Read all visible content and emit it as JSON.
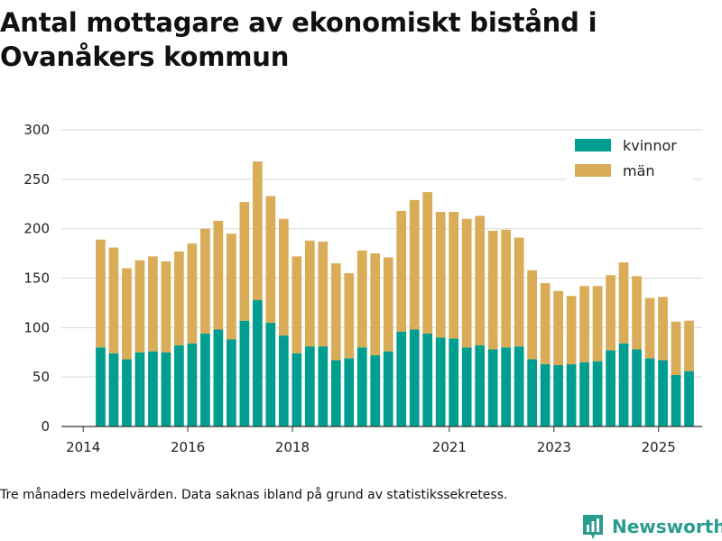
{
  "title": "Antal mottagare av ekonomiskt bistånd i Ovanåkers kommun",
  "note": "Tre månaders medelvärden. Data saknas ibland på grund av statistikssekretess.",
  "brand": {
    "name": "Newsworthy"
  },
  "colors": {
    "kvinnor": "#009e8e",
    "man": "#d9ac57",
    "axis": "#333333",
    "grid": "#d9d9d9",
    "brand": "#2a9d8f"
  },
  "chart_data": {
    "type": "bar",
    "stacked": true,
    "title": "Antal mottagare av ekonomiskt bistånd i Ovanåkers kommun",
    "xlabel": "",
    "ylabel": "",
    "ylim": [
      0,
      300
    ],
    "yticks": [
      0,
      50,
      100,
      150,
      200,
      250,
      300
    ],
    "x_domain": [
      2013.583,
      2025.833
    ],
    "xticks": [
      {
        "value": 2014,
        "label": "2014"
      },
      {
        "value": 2016,
        "label": "2016"
      },
      {
        "value": 2018,
        "label": "2018"
      },
      {
        "value": 2021,
        "label": "2021"
      },
      {
        "value": 2023,
        "label": "2023"
      },
      {
        "value": 2025,
        "label": "2025"
      }
    ],
    "legend": {
      "position": "top-right"
    },
    "x": [
      2014.333,
      2014.583,
      2014.833,
      2015.083,
      2015.333,
      2015.583,
      2015.833,
      2016.083,
      2016.333,
      2016.583,
      2016.833,
      2017.083,
      2017.333,
      2017.583,
      2017.833,
      2018.083,
      2018.333,
      2018.583,
      2018.833,
      2019.083,
      2019.333,
      2019.583,
      2019.833,
      2020.083,
      2020.333,
      2020.583,
      2020.833,
      2021.083,
      2021.333,
      2021.583,
      2021.833,
      2022.083,
      2022.333,
      2022.583,
      2022.833,
      2023.083,
      2023.333,
      2023.583,
      2023.833,
      2024.083,
      2024.333,
      2024.583,
      2024.833,
      2025.083,
      2025.333,
      2025.583
    ],
    "series": [
      {
        "name": "kvinnor",
        "values": [
          80,
          74,
          68,
          75,
          76,
          75,
          82,
          84,
          94,
          98,
          88,
          107,
          128,
          105,
          92,
          74,
          81,
          81,
          67,
          69,
          80,
          72,
          76,
          96,
          98,
          94,
          90,
          89,
          80,
          82,
          78,
          80,
          81,
          68,
          63,
          62,
          63,
          65,
          66,
          77,
          84,
          78,
          69,
          67,
          52,
          56
        ]
      },
      {
        "name": "män",
        "values": [
          109,
          107,
          92,
          93,
          96,
          92,
          95,
          101,
          106,
          110,
          107,
          120,
          140,
          128,
          118,
          98,
          107,
          106,
          98,
          86,
          98,
          103,
          95,
          122,
          131,
          143,
          127,
          128,
          130,
          131,
          120,
          119,
          110,
          90,
          82,
          75,
          69,
          77,
          76,
          76,
          82,
          74,
          61,
          64,
          54,
          51
        ]
      }
    ]
  }
}
